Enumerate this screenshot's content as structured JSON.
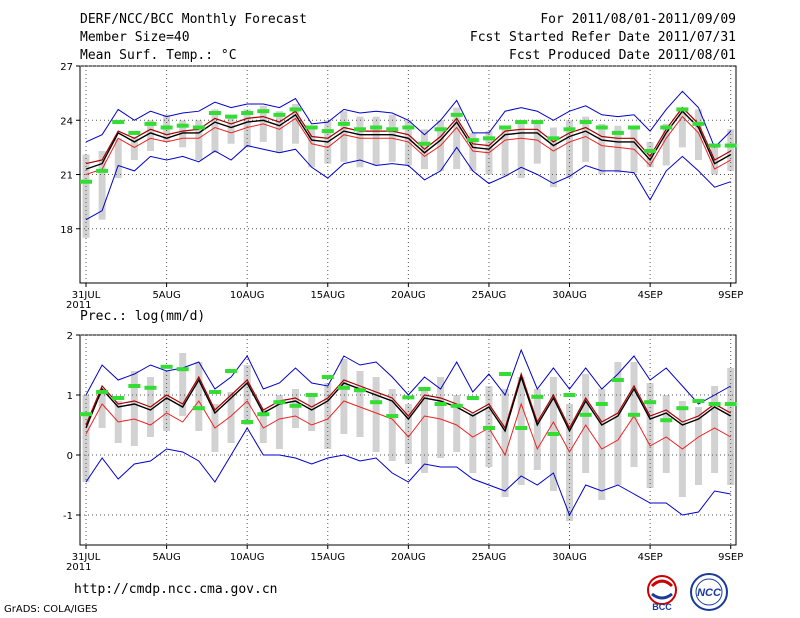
{
  "header": {
    "title": "DERF/NCC/BCC Monthly Forecast",
    "member": "Member Size=40",
    "variable": "Mean Surf. Temp.: °C",
    "period": "For 2011/08/01-2011/09/09",
    "refer": "Fcst Started Refer Date 2011/07/31",
    "produced": "Fcst Produced Date 2011/08/01"
  },
  "footer": {
    "url": "http://cmdp.ncc.cma.gov.cn",
    "grads": "GrADS: COLA/IGES",
    "logo_bcc": "BCC",
    "logo_ncc": "NCC"
  },
  "colors": {
    "envelope": "#0000cc",
    "mean": "#000000",
    "median": "#aa0000",
    "low_red": "#ee2222",
    "box": "#d2d2d2",
    "marker": "#33dd33"
  },
  "chart_data": [
    {
      "type": "line",
      "title": "Mean Surf. Temp.: °C",
      "ylim": [
        15,
        27
      ],
      "yticks": [
        "18",
        "21",
        "24",
        "27"
      ],
      "xticks": [
        "31JUL",
        "5AUG",
        "10AUG",
        "15AUG",
        "20AUG",
        "25AUG",
        "30AUG",
        "4SEP",
        "9SEP"
      ],
      "xtick_year": "2011",
      "x": [
        0,
        1,
        2,
        3,
        4,
        5,
        6,
        7,
        8,
        9,
        10,
        11,
        12,
        13,
        14,
        15,
        16,
        17,
        18,
        19,
        20,
        21,
        22,
        23,
        24,
        25,
        26,
        27,
        28,
        29,
        30,
        31,
        32,
        33,
        34,
        35,
        36,
        37,
        38,
        39,
        40
      ],
      "series": [
        {
          "name": "max",
          "values": [
            22.8,
            23.2,
            24.6,
            24.0,
            24.5,
            24.2,
            24.4,
            24.5,
            25.0,
            24.7,
            24.9,
            24.9,
            24.7,
            25.2,
            23.8,
            23.9,
            24.6,
            24.4,
            24.5,
            24.4,
            24.0,
            23.2,
            24.0,
            25.1,
            23.3,
            23.3,
            24.5,
            24.7,
            24.5,
            24.0,
            24.5,
            24.8,
            24.3,
            24.2,
            24.3,
            23.4,
            24.6,
            25.6,
            24.7,
            22.5,
            23.4
          ]
        },
        {
          "name": "mean",
          "values": [
            21.3,
            21.6,
            23.3,
            22.8,
            23.3,
            23.0,
            23.3,
            23.3,
            23.9,
            23.6,
            23.9,
            24.0,
            23.7,
            24.3,
            22.9,
            22.8,
            23.4,
            23.2,
            23.2,
            23.2,
            23.0,
            22.2,
            22.9,
            23.9,
            22.5,
            22.4,
            23.2,
            23.3,
            23.3,
            22.6,
            23.1,
            23.4,
            22.9,
            22.8,
            22.8,
            21.8,
            23.3,
            24.5,
            23.6,
            21.6,
            22.1
          ]
        },
        {
          "name": "median",
          "values": [
            21.6,
            21.8,
            23.4,
            23.0,
            23.5,
            23.2,
            23.4,
            23.5,
            24.1,
            23.8,
            24.1,
            24.2,
            23.9,
            24.5,
            23.1,
            23.0,
            23.6,
            23.4,
            23.4,
            23.4,
            23.2,
            22.4,
            23.1,
            24.1,
            22.7,
            22.6,
            23.4,
            23.5,
            23.5,
            22.8,
            23.3,
            23.6,
            23.1,
            23.0,
            23.0,
            22.0,
            23.5,
            24.7,
            23.8,
            21.8,
            22.3
          ]
        },
        {
          "name": "lower",
          "values": [
            21.0,
            21.3,
            23.0,
            22.5,
            23.0,
            22.8,
            23.0,
            23.0,
            23.6,
            23.3,
            23.6,
            23.8,
            23.5,
            24.1,
            22.7,
            22.5,
            23.2,
            23.0,
            23.0,
            23.0,
            22.8,
            22.0,
            22.6,
            23.6,
            22.3,
            22.2,
            22.9,
            23.0,
            22.9,
            22.3,
            22.8,
            23.1,
            22.6,
            22.5,
            22.4,
            21.5,
            23.0,
            24.2,
            23.3,
            21.3,
            21.8
          ]
        },
        {
          "name": "min",
          "values": [
            18.5,
            19.0,
            21.5,
            21.2,
            22.0,
            21.8,
            22.0,
            21.7,
            22.3,
            21.8,
            22.6,
            22.4,
            22.2,
            22.4,
            21.4,
            20.8,
            21.6,
            21.8,
            21.5,
            21.6,
            21.5,
            20.7,
            21.2,
            22.5,
            21.2,
            20.5,
            20.9,
            21.4,
            21.0,
            20.5,
            20.9,
            21.5,
            21.2,
            21.2,
            21.1,
            19.6,
            21.2,
            22.0,
            21.2,
            20.3,
            20.6
          ]
        },
        {
          "name": "box_low",
          "values": [
            17.5,
            18.5,
            20.8,
            21.8,
            22.3,
            22.8,
            22.5,
            21.8,
            22.2,
            22.7,
            22.5,
            22.8,
            22.2,
            22.7,
            21.4,
            21.6,
            21.7,
            21.4,
            21.5,
            21.7,
            21.5,
            21.3,
            21.2,
            21.3,
            21.2,
            21.0,
            20.9,
            20.8,
            21.6,
            20.3,
            20.8,
            21.7,
            21.0,
            21.1,
            21.1,
            21.4,
            21.5,
            22.5,
            21.8,
            21.0,
            21.2
          ]
        },
        {
          "name": "box_high",
          "values": [
            22.1,
            22.3,
            23.0,
            23.1,
            24.0,
            24.3,
            24.0,
            24.0,
            24.6,
            24.2,
            24.6,
            24.8,
            24.5,
            24.9,
            23.6,
            24.0,
            24.5,
            24.2,
            24.2,
            24.3,
            24.0,
            23.5,
            24.0,
            24.7,
            23.3,
            23.4,
            23.5,
            24.0,
            23.9,
            23.6,
            24.0,
            24.2,
            23.8,
            23.7,
            23.6,
            22.8,
            23.8,
            24.7,
            24.6,
            22.6,
            23.5
          ]
        },
        {
          "name": "observed",
          "values": [
            20.6,
            21.2,
            23.9,
            23.3,
            23.8,
            23.6,
            23.7,
            23.6,
            24.4,
            24.2,
            24.4,
            24.5,
            24.3,
            24.6,
            23.6,
            23.4,
            23.8,
            23.5,
            23.6,
            23.5,
            23.6,
            22.7,
            23.5,
            24.3,
            22.9,
            23.0,
            23.6,
            23.9,
            23.9,
            23.0,
            23.5,
            23.9,
            23.6,
            23.3,
            23.6,
            22.3,
            23.6,
            24.6,
            23.8,
            22.6,
            22.6
          ]
        }
      ]
    },
    {
      "type": "line",
      "title": "Prec.: log(mm/d)",
      "ylim": [
        -1.5,
        2
      ],
      "yticks": [
        "-1",
        "0",
        "1",
        "2"
      ],
      "xticks": [
        "31JUL",
        "5AUG",
        "10AUG",
        "15AUG",
        "20AUG",
        "25AUG",
        "30AUG",
        "4SEP",
        "9SEP"
      ],
      "xtick_year": "2011",
      "x": [
        0,
        1,
        2,
        3,
        4,
        5,
        6,
        7,
        8,
        9,
        10,
        11,
        12,
        13,
        14,
        15,
        16,
        17,
        18,
        19,
        20,
        21,
        22,
        23,
        24,
        25,
        26,
        27,
        28,
        29,
        30,
        31,
        32,
        33,
        34,
        35,
        36,
        37,
        38,
        39,
        40
      ],
      "series": [
        {
          "name": "max",
          "values": [
            1.0,
            1.5,
            1.25,
            1.35,
            1.5,
            1.4,
            1.45,
            1.55,
            1.1,
            1.3,
            1.65,
            1.1,
            1.2,
            1.45,
            1.2,
            1.15,
            1.65,
            1.5,
            1.55,
            1.3,
            1.0,
            1.3,
            1.1,
            1.55,
            1.05,
            1.35,
            1.0,
            1.75,
            1.1,
            1.45,
            1.1,
            1.45,
            1.1,
            1.35,
            1.65,
            1.25,
            1.45,
            1.15,
            0.85,
            1.0,
            1.15
          ]
        },
        {
          "name": "mean",
          "values": [
            0.45,
            1.1,
            0.8,
            0.85,
            0.75,
            0.95,
            0.8,
            1.25,
            0.7,
            0.95,
            1.2,
            0.7,
            0.85,
            0.9,
            0.75,
            0.9,
            1.2,
            1.1,
            1.0,
            0.9,
            0.6,
            0.95,
            0.9,
            0.8,
            0.65,
            0.8,
            0.4,
            1.3,
            0.5,
            0.95,
            0.4,
            0.9,
            0.5,
            0.65,
            1.1,
            0.6,
            0.7,
            0.5,
            0.6,
            0.8,
            0.65
          ]
        },
        {
          "name": "median",
          "values": [
            0.5,
            1.15,
            0.85,
            0.9,
            0.8,
            1.0,
            0.85,
            1.3,
            0.75,
            1.0,
            1.25,
            0.75,
            0.9,
            0.95,
            0.8,
            0.95,
            1.25,
            1.15,
            1.05,
            0.95,
            0.65,
            1.0,
            0.95,
            0.85,
            0.7,
            0.85,
            0.45,
            1.35,
            0.55,
            1.0,
            0.45,
            0.95,
            0.55,
            0.7,
            1.15,
            0.65,
            0.75,
            0.55,
            0.65,
            0.85,
            0.7
          ]
        },
        {
          "name": "lower",
          "values": [
            0.35,
            0.85,
            0.55,
            0.6,
            0.5,
            0.7,
            0.55,
            0.9,
            0.45,
            0.65,
            0.9,
            0.45,
            0.6,
            0.65,
            0.5,
            0.6,
            0.9,
            0.8,
            0.7,
            0.6,
            0.3,
            0.65,
            0.6,
            0.5,
            0.3,
            0.45,
            0.0,
            0.85,
            0.1,
            0.55,
            0.05,
            0.5,
            0.1,
            0.25,
            0.65,
            0.15,
            0.3,
            0.1,
            0.3,
            0.45,
            0.3
          ]
        },
        {
          "name": "min",
          "values": [
            -0.45,
            -0.05,
            -0.4,
            -0.15,
            -0.1,
            0.1,
            0.05,
            -0.1,
            -0.45,
            0.0,
            0.45,
            0.0,
            0.0,
            -0.05,
            -0.15,
            -0.05,
            0.0,
            -0.1,
            -0.05,
            -0.3,
            -0.45,
            -0.15,
            -0.2,
            -0.2,
            -0.4,
            -0.5,
            -0.6,
            -0.35,
            -0.5,
            -0.3,
            -1.0,
            -0.5,
            -0.6,
            -0.5,
            -0.65,
            -0.8,
            -0.8,
            -1.0,
            -0.95,
            -0.6,
            -0.65
          ]
        },
        {
          "name": "box_low",
          "values": [
            -0.45,
            0.45,
            0.2,
            0.15,
            0.3,
            0.4,
            0.65,
            0.4,
            0.05,
            0.2,
            0.5,
            0.2,
            0.1,
            0.45,
            0.4,
            0.1,
            0.35,
            0.3,
            0.05,
            -0.1,
            -0.15,
            -0.3,
            -0.05,
            0.05,
            -0.3,
            -0.2,
            -0.7,
            -0.5,
            -0.25,
            -0.6,
            -1.1,
            -0.3,
            -0.75,
            -0.5,
            -0.2,
            -0.55,
            -0.3,
            -0.7,
            -0.5,
            -0.3,
            -0.5
          ]
        },
        {
          "name": "box_high",
          "values": [
            1.0,
            1.1,
            0.9,
            1.4,
            1.3,
            1.4,
            1.7,
            1.55,
            0.85,
            1.05,
            1.5,
            0.75,
            1.0,
            1.1,
            1.0,
            1.2,
            1.6,
            1.4,
            1.3,
            1.1,
            0.85,
            1.1,
            1.3,
            1.0,
            0.7,
            1.15,
            1.1,
            1.3,
            1.1,
            1.3,
            0.85,
            1.35,
            1.1,
            1.55,
            1.55,
            1.2,
            1.0,
            0.9,
            0.8,
            1.15,
            1.45
          ]
        },
        {
          "name": "observed",
          "values": [
            0.68,
            1.05,
            0.95,
            1.15,
            1.12,
            1.47,
            1.43,
            0.78,
            1.05,
            1.4,
            0.55,
            0.68,
            0.88,
            0.82,
            1.0,
            1.3,
            1.12,
            1.08,
            0.88,
            0.65,
            0.96,
            1.1,
            0.85,
            0.82,
            0.95,
            0.45,
            1.35,
            0.45,
            0.97,
            0.35,
            1.0,
            0.67,
            0.85,
            1.25,
            0.67,
            0.88,
            0.58,
            0.78,
            0.9,
            0.85,
            0.85
          ]
        }
      ]
    }
  ]
}
